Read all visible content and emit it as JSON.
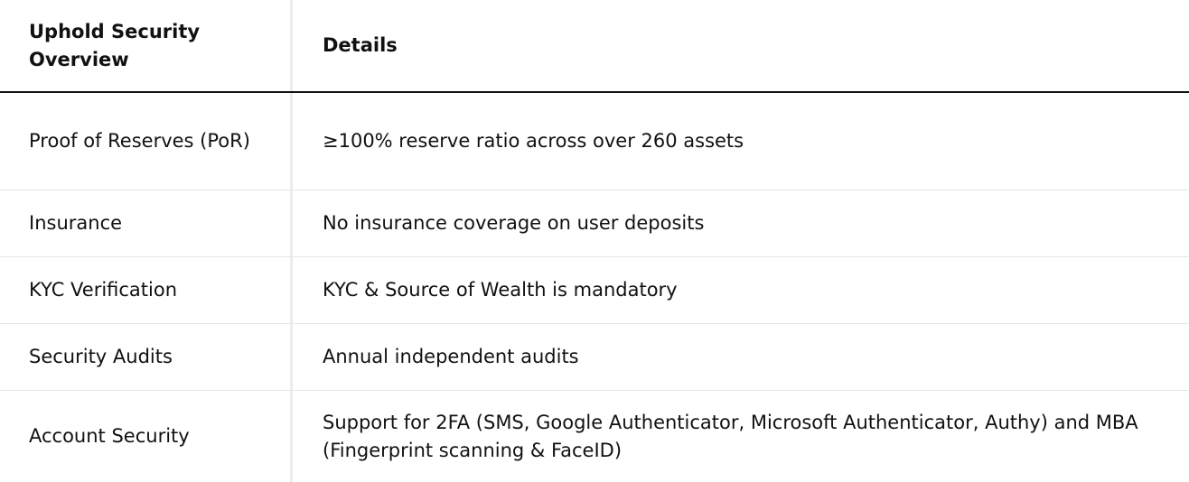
{
  "table": {
    "headers": [
      "Uphold Security Overview",
      "Details"
    ],
    "rows": [
      {
        "label": "Proof of Reserves (PoR)",
        "detail": "≥100% reserve ratio across over 260 assets"
      },
      {
        "label": "Insurance",
        "detail": "No insurance coverage on user deposits"
      },
      {
        "label": "KYC Verification",
        "detail": "KYC & Source of Wealth is mandatory"
      },
      {
        "label": "Security Audits",
        "detail": "Annual independent audits"
      },
      {
        "label": "Account Security",
        "detail": "Support for 2FA (SMS, Google Authenticator, Microsoft Authenticator, Authy) and MBA (Fingerprint scanning & FaceID)"
      }
    ]
  }
}
